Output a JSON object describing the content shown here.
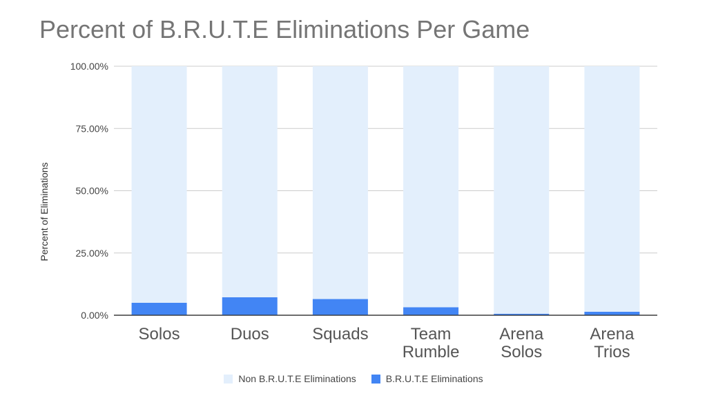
{
  "chart_data": {
    "type": "bar",
    "stacked": true,
    "title": "Percent of B.R.U.T.E Eliminations Per Game",
    "ylabel": "Percent of Eliminations",
    "xlabel": "",
    "ylim": [
      0,
      100
    ],
    "yticks": [
      "0.00%",
      "25.00%",
      "50.00%",
      "75.00%",
      "100.00%"
    ],
    "categories": [
      [
        "Solos"
      ],
      [
        "Duos"
      ],
      [
        "Squads"
      ],
      [
        "Team",
        "Rumble"
      ],
      [
        "Arena",
        "Solos"
      ],
      [
        "Arena",
        "Trios"
      ]
    ],
    "series": [
      {
        "name": "Non B.R.U.T.E Eliminations",
        "color": "#e3effc",
        "values": [
          95.0,
          92.8,
          93.5,
          96.8,
          99.4,
          98.6
        ]
      },
      {
        "name": "B.R.U.T.E Eliminations",
        "color": "#4285f4",
        "values": [
          5.0,
          7.2,
          6.5,
          3.2,
          0.6,
          1.4
        ]
      }
    ],
    "grid": true,
    "legend": "bottom"
  }
}
